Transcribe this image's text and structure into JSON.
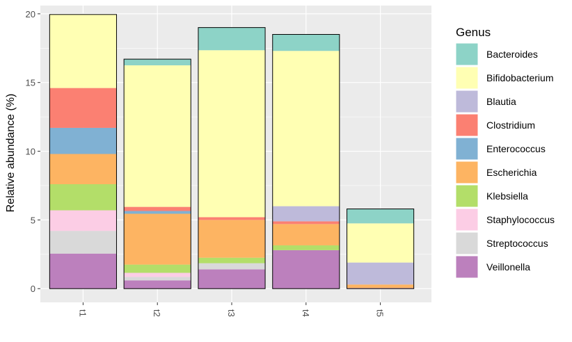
{
  "chart_data": {
    "type": "stacked_bar",
    "y_label": "Relative abundance (%)",
    "legend_title": "Genus",
    "categories": [
      "t1",
      "t2",
      "t3",
      "t4",
      "t5"
    ],
    "series": [
      {
        "name": "Bacteroides",
        "color": "#8DD3C7",
        "values": [
          0,
          0.45,
          1.65,
          1.2,
          1.05
        ]
      },
      {
        "name": "Bifidobacterium",
        "color": "#FFFFB3",
        "values": [
          5.35,
          10.3,
          12.15,
          11.3,
          2.85
        ]
      },
      {
        "name": "Blautia",
        "color": "#BEBADA",
        "values": [
          0,
          0,
          0,
          1.1,
          1.6
        ]
      },
      {
        "name": "Clostridium",
        "color": "#FB8072",
        "values": [
          2.9,
          0.3,
          0.2,
          0.2,
          0
        ]
      },
      {
        "name": "Enterococcus",
        "color": "#80B1D3",
        "values": [
          1.9,
          0.2,
          0,
          0,
          0
        ]
      },
      {
        "name": "Escherichia",
        "color": "#FDB462",
        "values": [
          2.2,
          3.7,
          2.75,
          1.55,
          0.25
        ]
      },
      {
        "name": "Klebsiella",
        "color": "#B3DE69",
        "values": [
          1.9,
          0.6,
          0.4,
          0.35,
          0
        ]
      },
      {
        "name": "Staphylococcus",
        "color": "#FCCDE5",
        "values": [
          1.5,
          0.3,
          0,
          0,
          0
        ]
      },
      {
        "name": "Streptococcus",
        "color": "#D9D9D9",
        "values": [
          1.65,
          0.25,
          0.45,
          0,
          0
        ]
      },
      {
        "name": "Veillonella",
        "color": "#BC80BD",
        "values": [
          2.55,
          0.6,
          1.4,
          2.8,
          0.05
        ]
      }
    ],
    "ylim": [
      -1,
      20.6
    ],
    "yticks": [
      0,
      5,
      10,
      15,
      20
    ],
    "grid": true
  }
}
